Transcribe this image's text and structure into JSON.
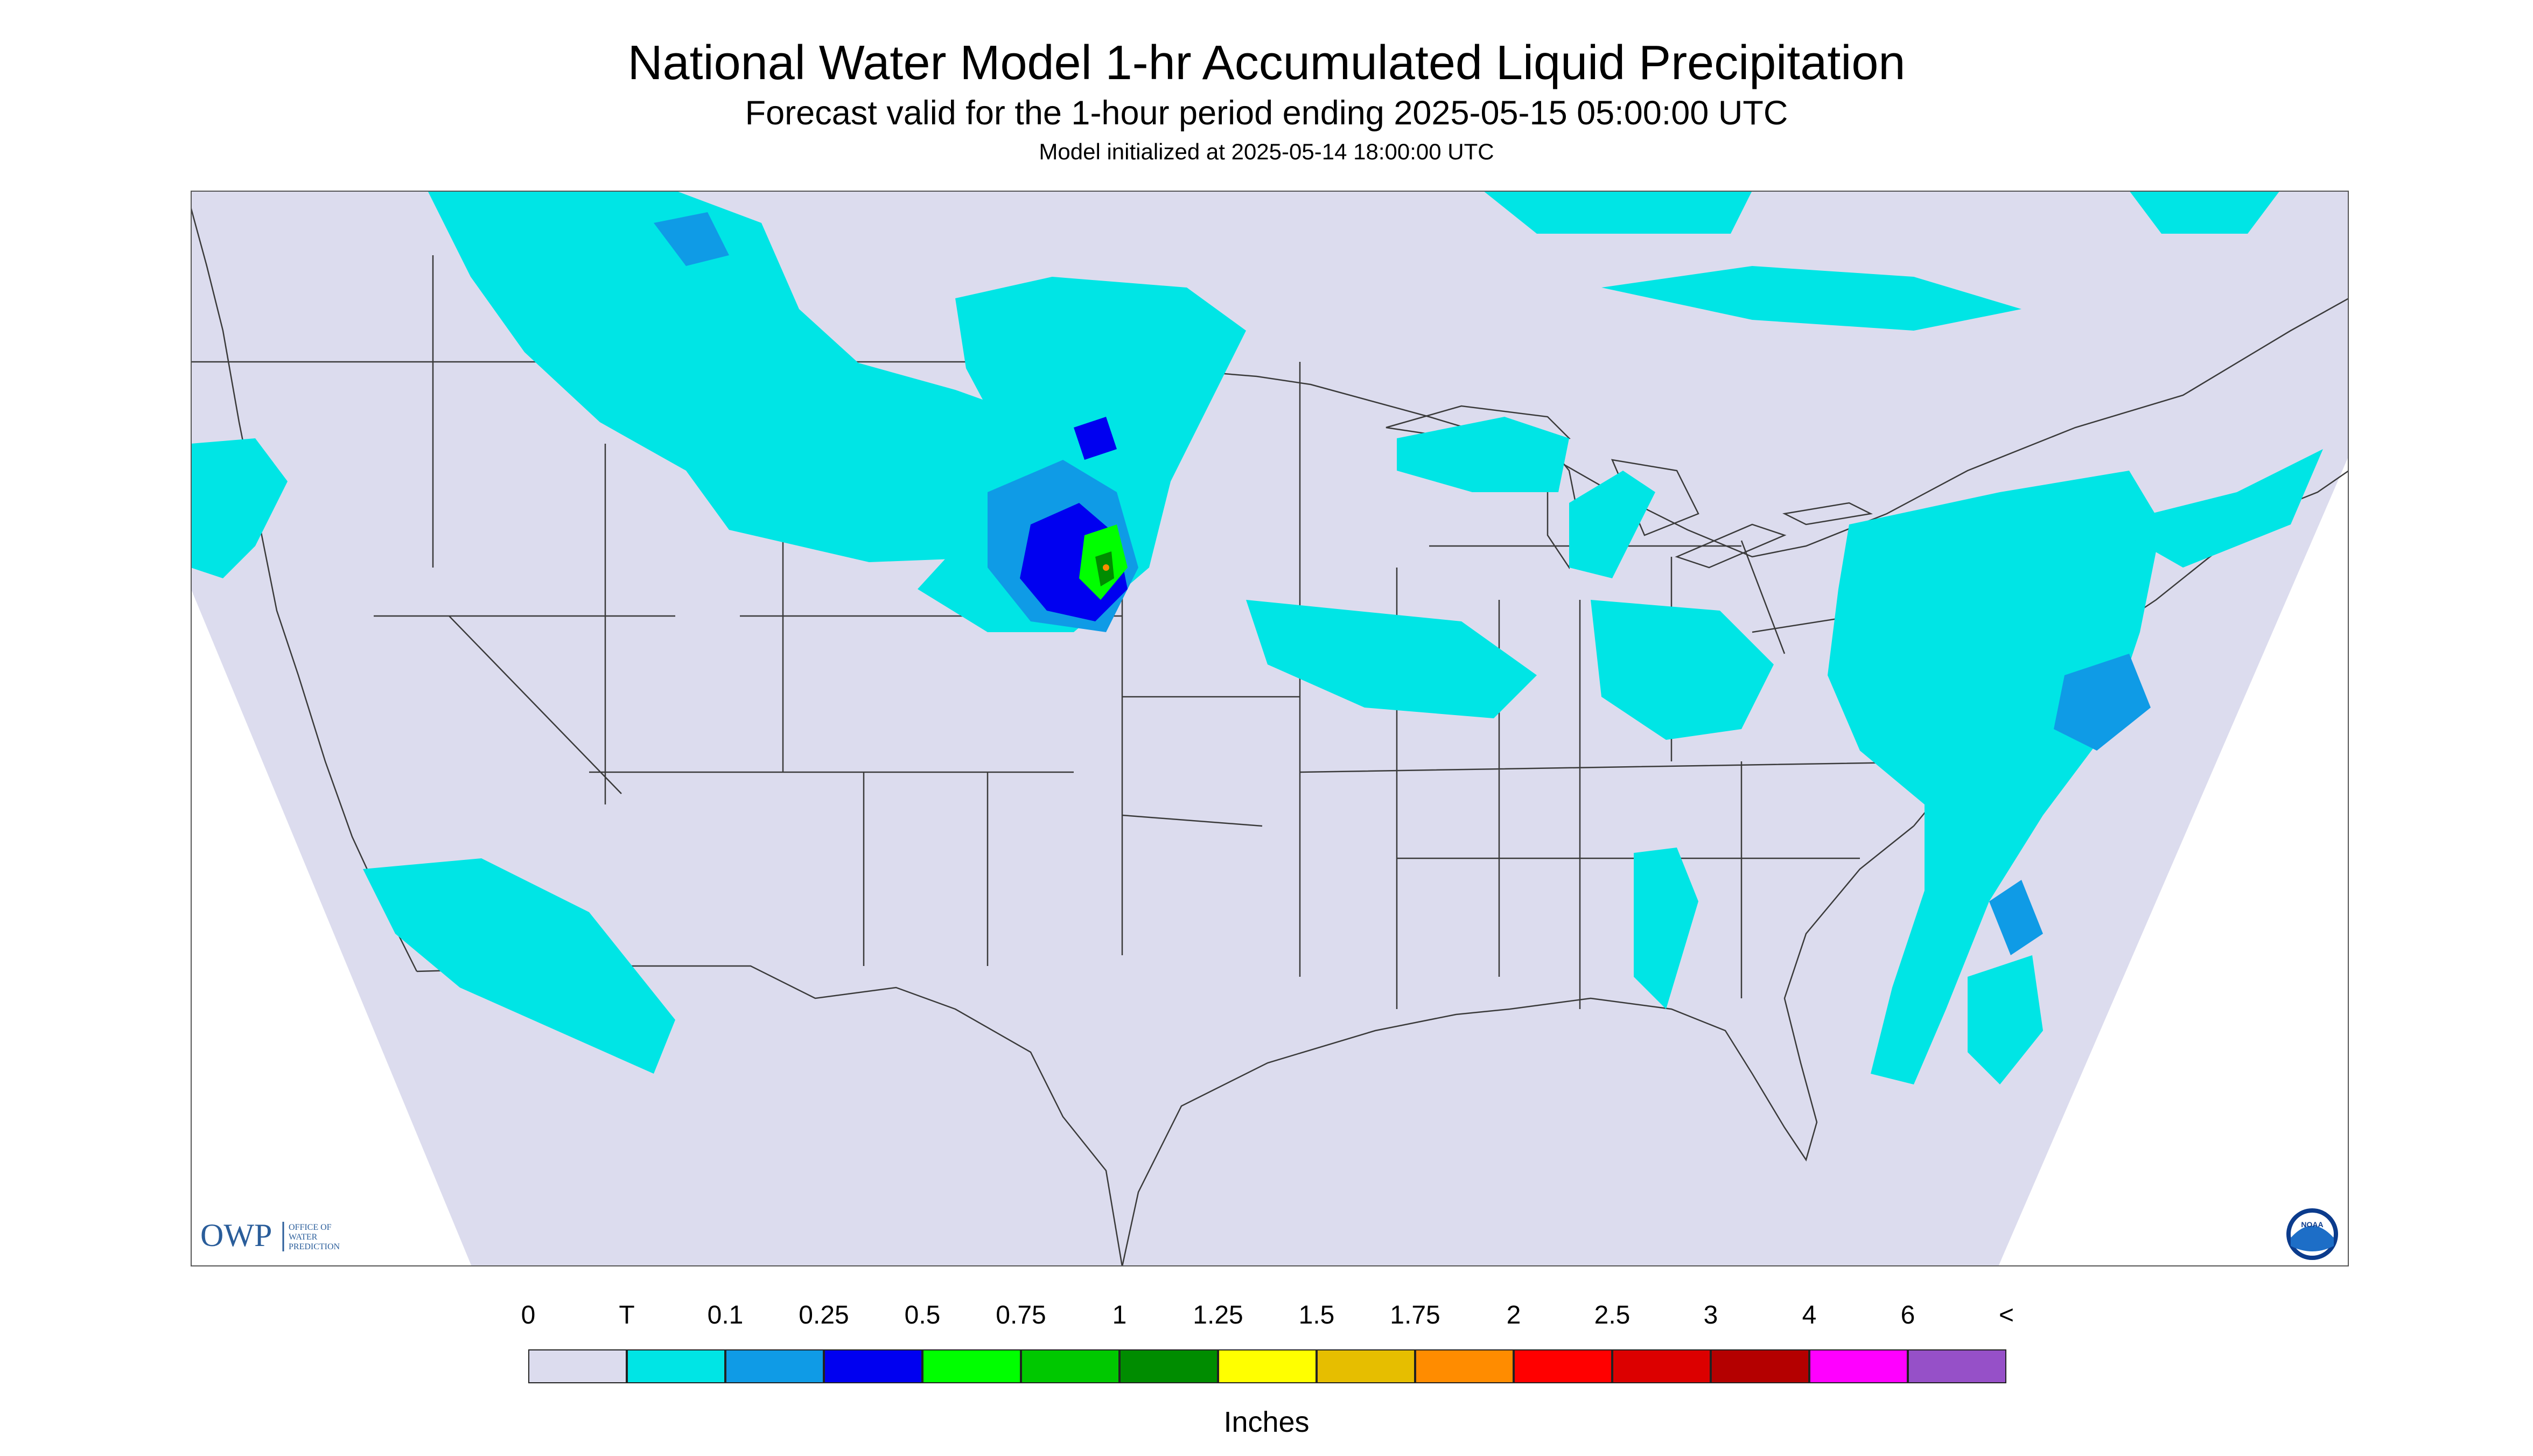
{
  "header": {
    "title": "National Water Model 1-hr Accumulated Liquid Precipitation",
    "subtitle": "Forecast valid for the 1-hour period ending 2025-05-15 05:00:00 UTC",
    "init": "Model initialized at 2025-05-14 18:00:00 UTC"
  },
  "map": {
    "background_color": "#dcdcee",
    "outside_color": "#ffffff",
    "border_color": "#3a3a3a",
    "precip_regions": "light showers (T–0.1 in) across northern Plains, Great Lakes, Ohio Valley, Mid-Atlantic, Northeast and offshore Atlantic; heavier core 0.25–2 in over southeastern South Dakota / northeastern Nebraska"
  },
  "logos": {
    "owp_abbrev": "OWP",
    "owp_line1": "OFFICE OF",
    "owp_line2": "WATER",
    "owp_line3": "PREDICTION",
    "noaa": "NOAA"
  },
  "legend": {
    "labels": [
      "0",
      "T",
      "0.1",
      "0.25",
      "0.5",
      "0.75",
      "1",
      "1.25",
      "1.5",
      "1.75",
      "2",
      "2.5",
      "3",
      "4",
      "6",
      "<"
    ],
    "colors": [
      "#dcdcee",
      "#00e5e5",
      "#0f9be6",
      "#0000f0",
      "#00ff00",
      "#00c800",
      "#008c00",
      "#ffff00",
      "#e6be00",
      "#ff8c00",
      "#ff0000",
      "#dc0000",
      "#b40000",
      "#ff00ff",
      "#9650c8"
    ],
    "units": "Inches"
  }
}
